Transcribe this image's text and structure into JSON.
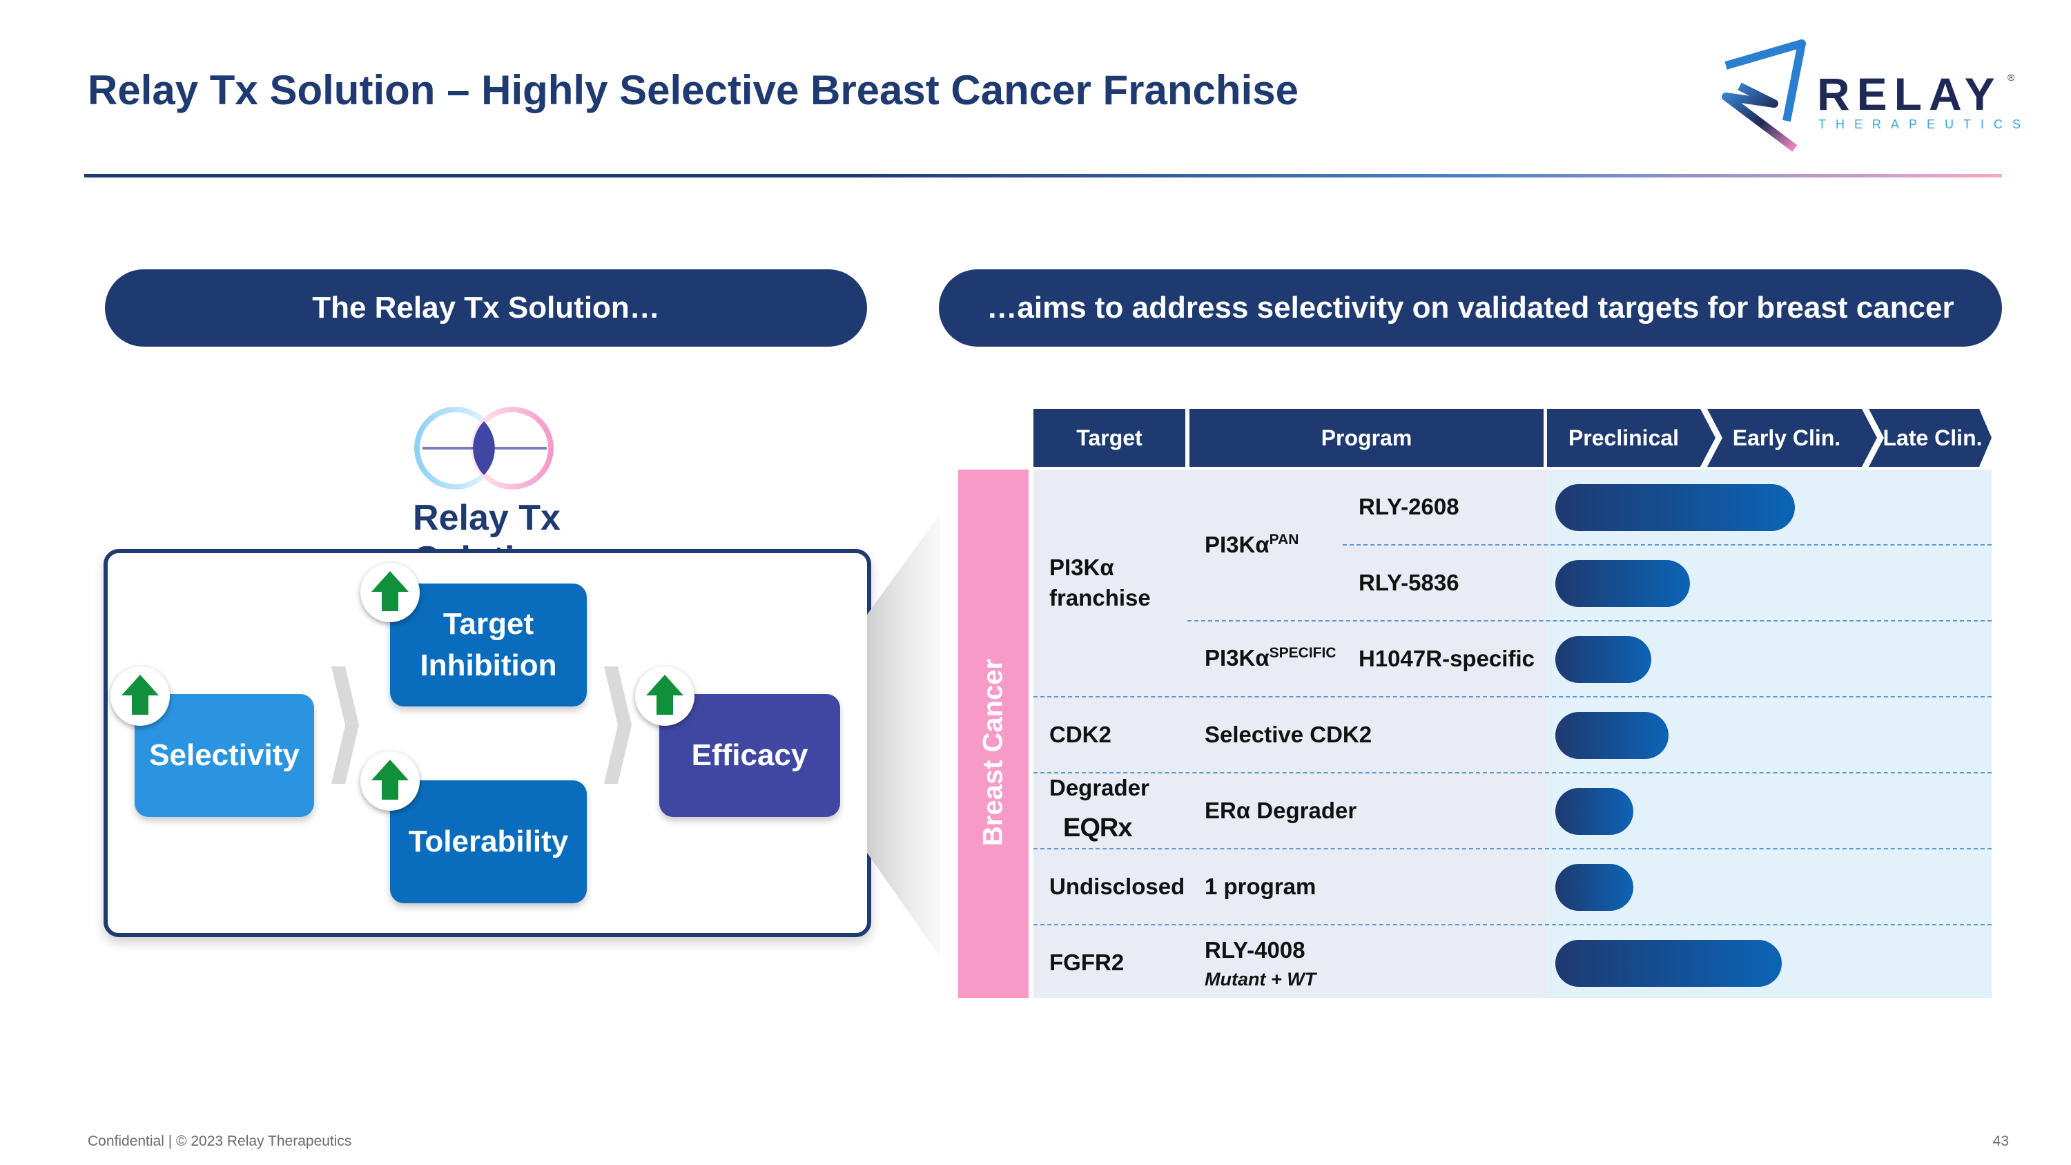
{
  "header": {
    "title": "Relay Tx Solution – Highly Selective Breast Cancer Franchise",
    "logo_name": "RELAY",
    "logo_sub": "THERAPEUTICS",
    "logo_reg": "®"
  },
  "left_pill": "The Relay Tx Solution…",
  "right_pill": "…aims to address selectivity on validated targets for breast cancer",
  "solution": {
    "title": "Relay Tx Solution",
    "boxes": {
      "selectivity": "Selectivity",
      "target_inhibition": "Target Inhibition",
      "tolerability": "Tolerability",
      "efficacy": "Efficacy"
    }
  },
  "pipeline": {
    "side_label": "Breast Cancer",
    "headers": {
      "target": "Target",
      "program": "Program",
      "preclinical": "Preclinical",
      "early": "Early Clin.",
      "late": "Late Clin."
    },
    "rows": [
      {
        "target": "PI3Kα franchise",
        "group": "PI3Kα",
        "group_sup": "PAN",
        "program": "RLY-2608",
        "progress": 0.55
      },
      {
        "program": "RLY-5836",
        "progress": 0.31
      },
      {
        "group": "PI3Kα",
        "group_sup": "SPECIFIC",
        "program": "H1047R-specific",
        "progress": 0.22
      },
      {
        "target": "CDK2",
        "program": "Selective CDK2",
        "progress": 0.26
      },
      {
        "target": "Degrader",
        "target_logo": "EQRx",
        "program": "ERα Degrader",
        "progress": 0.18
      },
      {
        "target": "Undisclosed",
        "program": "1 program",
        "progress": 0.18
      },
      {
        "target": "FGFR2",
        "program": "RLY-4008",
        "program_sub": "Mutant + WT",
        "progress": 0.52
      }
    ]
  },
  "footer": {
    "left": "Confidential | © 2023 Relay Therapeutics",
    "page": "43"
  },
  "colors": {
    "navy": "#1e3a70",
    "light_blue": "#2a94e0",
    "mid_blue": "#0a6cbd",
    "purple": "#3f47a3",
    "pink": "#f79ac8",
    "green": "#11903b"
  }
}
